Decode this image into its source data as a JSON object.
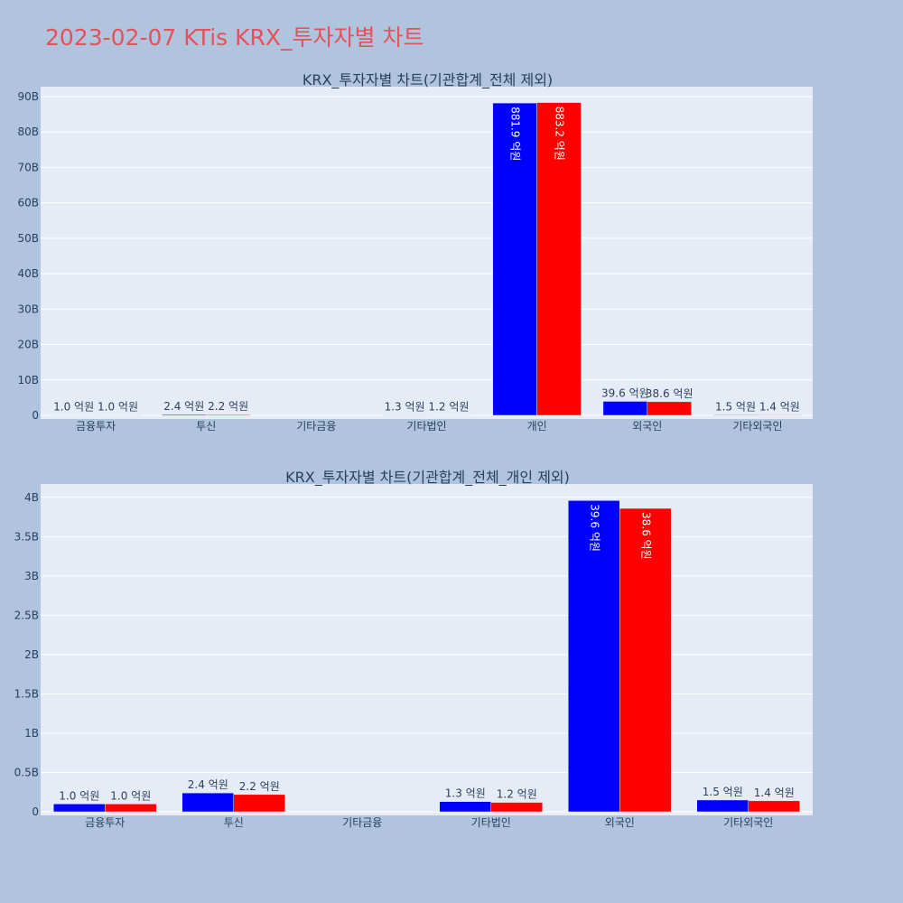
{
  "title": "2023-02-07 KTis KRX_투자자별 차트",
  "colors": {
    "series1": "#0000ff",
    "series2": "#ff0000",
    "plot_bg": "#e5ecf6",
    "page_bg": "#b0c4de",
    "title": "#e8505b"
  },
  "chart_data": [
    {
      "type": "bar",
      "title": "KRX_투자자별 차트(기관합계_전체 제외)",
      "categories": [
        "금융투자",
        "투신",
        "기타금융",
        "기타법인",
        "개인",
        "외국인",
        "기타외국인"
      ],
      "series": [
        {
          "values": [
            0.1,
            0.24,
            0,
            0.13,
            88.19,
            3.96,
            0.15
          ],
          "labels": [
            "1.0 억원",
            "2.4 억원",
            "",
            "1.3 억원",
            "881.9 억원",
            "39.6 억원",
            "1.5 억원"
          ]
        },
        {
          "values": [
            0.1,
            0.22,
            0,
            0.12,
            88.32,
            3.86,
            0.14
          ],
          "labels": [
            "1.0 억원",
            "2.2 억원",
            "",
            "1.2 억원",
            "883.2 억원",
            "38.6 억원",
            "1.4 억원"
          ]
        }
      ],
      "yticks": [
        0,
        10,
        20,
        30,
        40,
        50,
        60,
        70,
        80,
        90
      ],
      "ytick_labels": [
        "0",
        "10B",
        "20B",
        "30B",
        "40B",
        "50B",
        "60B",
        "70B",
        "80B",
        "90B"
      ],
      "ylim": [
        0,
        92.8
      ],
      "grid": true,
      "barmode": "group"
    },
    {
      "type": "bar",
      "title": "KRX_투자자별 차트(기관합계_전체_개인 제외)",
      "categories": [
        "금융투자",
        "투신",
        "기타금융",
        "기타법인",
        "외국인",
        "기타외국인"
      ],
      "series": [
        {
          "values": [
            0.1,
            0.24,
            0,
            0.13,
            3.96,
            0.15
          ],
          "labels": [
            "1.0 억원",
            "2.4 억원",
            "",
            "1.3 억원",
            "39.6 억원",
            "1.5 억원"
          ]
        },
        {
          "values": [
            0.1,
            0.22,
            0,
            0.12,
            3.86,
            0.14
          ],
          "labels": [
            "1.0 억원",
            "2.2 억원",
            "",
            "1.2 억원",
            "38.6 억원",
            "1.4 억원"
          ]
        }
      ],
      "yticks": [
        0,
        0.5,
        1,
        1.5,
        2,
        2.5,
        3,
        3.5,
        4
      ],
      "ytick_labels": [
        "0",
        "0.5B",
        "1B",
        "1.5B",
        "2B",
        "2.5B",
        "3B",
        "3.5B",
        "4B"
      ],
      "ylim": [
        0,
        4.17
      ],
      "grid": true,
      "barmode": "group"
    }
  ]
}
